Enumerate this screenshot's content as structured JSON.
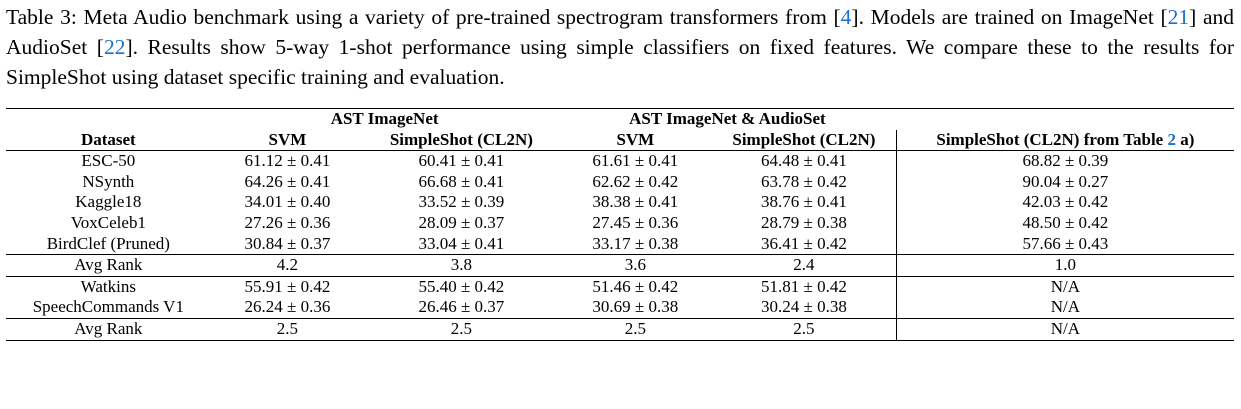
{
  "caption": {
    "label": "Table 3:",
    "text_a": " Meta Audio benchmark using a variety of pre-trained spectrogram transformers from [",
    "ref_a": "4",
    "text_b": "]. Models are trained on ImageNet [",
    "ref_b": "21",
    "text_c": "] and AudioSet [",
    "ref_c": "22",
    "text_d": "]. Results show 5-way 1-shot performance using simple classifiers on fixed features. We compare these to the results for SimpleShot using dataset specific training and evaluation."
  },
  "header": {
    "group1": "AST ImageNet",
    "group2": "AST ImageNet & AudioSet",
    "col_dataset": "Dataset",
    "col_svm1": "SVM",
    "col_ss1": "SimpleShot (CL2N)",
    "col_svm2": "SVM",
    "col_ss2": "SimpleShot (CL2N)",
    "col_table2_prefix": "SimpleShot (CL2N) from Table ",
    "col_table2_ref": "2",
    "col_table2_suffix": " a)"
  },
  "group1_rows": [
    {
      "dataset": "ESC-50",
      "v": [
        [
          "61.12",
          "0.41"
        ],
        [
          "60.41",
          "0.41"
        ],
        [
          "61.61",
          "0.41"
        ],
        [
          "64.48",
          "0.41"
        ],
        [
          "68.82",
          "0.39"
        ]
      ]
    },
    {
      "dataset": "NSynth",
      "v": [
        [
          "64.26",
          "0.41"
        ],
        [
          "66.68",
          "0.41"
        ],
        [
          "62.62",
          "0.42"
        ],
        [
          "63.78",
          "0.42"
        ],
        [
          "90.04",
          "0.27"
        ]
      ]
    },
    {
      "dataset": "Kaggle18",
      "v": [
        [
          "34.01",
          "0.40"
        ],
        [
          "33.52",
          "0.39"
        ],
        [
          "38.38",
          "0.41"
        ],
        [
          "38.76",
          "0.41"
        ],
        [
          "42.03",
          "0.42"
        ]
      ]
    },
    {
      "dataset": "VoxCeleb1",
      "v": [
        [
          "27.26",
          "0.36"
        ],
        [
          "28.09",
          "0.37"
        ],
        [
          "27.45",
          "0.36"
        ],
        [
          "28.79",
          "0.38"
        ],
        [
          "48.50",
          "0.42"
        ]
      ]
    },
    {
      "dataset": "BirdClef (Pruned)",
      "v": [
        [
          "30.84",
          "0.37"
        ],
        [
          "33.04",
          "0.41"
        ],
        [
          "33.17",
          "0.38"
        ],
        [
          "36.41",
          "0.42"
        ],
        [
          "57.66",
          "0.43"
        ]
      ]
    }
  ],
  "avg_rank_1": {
    "label": "Avg Rank",
    "v": [
      "4.2",
      "3.8",
      "3.6",
      "2.4",
      "1.0"
    ]
  },
  "group2_rows": [
    {
      "dataset": "Watkins",
      "v": [
        [
          "55.91",
          "0.42"
        ],
        [
          "55.40",
          "0.42"
        ],
        [
          "51.46",
          "0.42"
        ],
        [
          "51.81",
          "0.42"
        ]
      ],
      "last": "N/A"
    },
    {
      "dataset": "SpeechCommands V1",
      "v": [
        [
          "26.24",
          "0.36"
        ],
        [
          "26.46",
          "0.37"
        ],
        [
          "30.69",
          "0.38"
        ],
        [
          "30.24",
          "0.38"
        ]
      ],
      "last": "N/A"
    }
  ],
  "avg_rank_2": {
    "label": "Avg Rank",
    "v": [
      "2.5",
      "2.5",
      "2.5",
      "2.5",
      "N/A"
    ]
  },
  "pm_symbol": "±"
}
